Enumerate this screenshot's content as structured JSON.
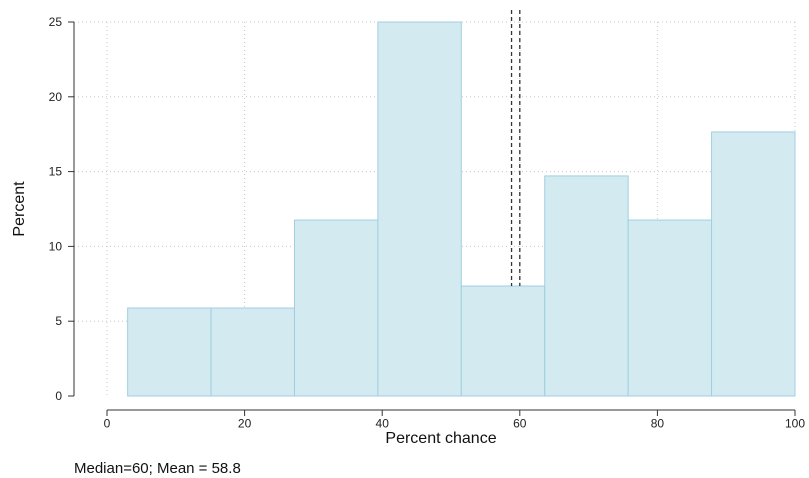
{
  "chart_data": {
    "type": "histogram",
    "xlabel": "Percent chance",
    "ylabel": "Percent",
    "xlim": [
      0,
      100
    ],
    "ylim": [
      0,
      25
    ],
    "x_ticks": [
      0,
      20,
      40,
      60,
      80,
      100
    ],
    "y_ticks": [
      0,
      5,
      10,
      15,
      20,
      25
    ],
    "bins": [
      {
        "start": 3,
        "end": 15.125,
        "value": 5.88
      },
      {
        "start": 15.125,
        "end": 27.25,
        "value": 5.88
      },
      {
        "start": 27.25,
        "end": 39.375,
        "value": 11.76
      },
      {
        "start": 39.375,
        "end": 51.5,
        "value": 25
      },
      {
        "start": 51.5,
        "end": 63.625,
        "value": 7.35
      },
      {
        "start": 63.625,
        "end": 75.75,
        "value": 14.71
      },
      {
        "start": 75.75,
        "end": 87.875,
        "value": 11.76
      },
      {
        "start": 87.875,
        "end": 100,
        "value": 17.65
      }
    ],
    "reference_lines": [
      {
        "name": "Mean",
        "x": 58.8
      },
      {
        "name": "Median",
        "x": 60
      }
    ],
    "note": "Median=60; Mean = 58.8",
    "grid": true,
    "colors": {
      "bar_fill": "#d4eaf1",
      "bar_stroke": "#9fcfe0",
      "grid": "#c8c8c8",
      "reference_line": "#333333"
    }
  }
}
